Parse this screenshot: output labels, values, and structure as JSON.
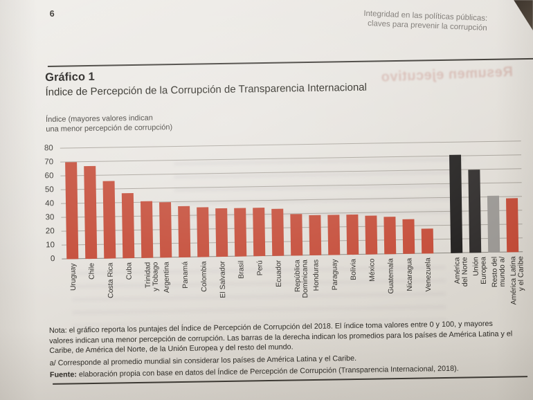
{
  "page": {
    "number": "6",
    "header_line1": "Integridad en las políticas públicas:",
    "header_line2": "claves para prevenir la corrupción"
  },
  "figure": {
    "label": "Gráfico 1",
    "title": "Índice de Percepción de la Corrupción de Transparencia Internacional",
    "axis_note_line1": "Índice (mayores valores indican",
    "axis_note_line2": "una menor percepción de corrupción)"
  },
  "chart_data": {
    "type": "bar",
    "title": "Índice de Percepción de la Corrupción de Transparencia Internacional",
    "ylabel": "Índice (mayores valores indican una menor percepción de corrupción)",
    "xlabel": "",
    "ylim": [
      0,
      80
    ],
    "yticks": [
      0,
      10,
      20,
      30,
      40,
      50,
      60,
      70,
      80
    ],
    "grid": true,
    "legend": "none",
    "bar_color": "#c44a36",
    "categories": [
      "Uruguay",
      "Chile",
      "Costa Rica",
      "Cuba",
      "Trinidad\ny Tobago",
      "Argentina",
      "Panamá",
      "Colombia",
      "El Salvador",
      "Brasil",
      "Perú",
      "Ecuador",
      "República\nDominicana",
      "Honduras",
      "Paraguay",
      "Bolivia",
      "México",
      "Guatemala",
      "Nicaragua",
      "Venezuela"
    ],
    "values": [
      70,
      67,
      56,
      47,
      41,
      40,
      37,
      36,
      35,
      35,
      35,
      34,
      30,
      29,
      29,
      29,
      28,
      27,
      25,
      18
    ],
    "aggregates": [
      {
        "label": "América\ndel Norte",
        "value": 71,
        "color": "#201e1d"
      },
      {
        "label": "Unión\nEuropea",
        "value": 60,
        "color": "#2e2b2a"
      },
      {
        "label": "Resto del\nmundo a/",
        "value": 41,
        "color": "#9a9793"
      },
      {
        "label": "América Latina\ny el Caribe",
        "value": 39,
        "color": "#c44a36"
      }
    ]
  },
  "notes": {
    "nota": "Nota: el gráfico reporta los puntajes del Índice de Percepción de Corrupción del 2018. El índice toma valores entre 0 y 100, y mayores valores indican una menor percepción de corrupción. Las barras de la derecha indican los promedios para los países de América Latina y el Caribe, de América del Norte, de la Unión Europea y del resto del mundo.",
    "footnote_a": "a/ Corresponde al promedio mundial sin considerar los países de América Latina y el Caribe.",
    "fuente_label": "Fuente:",
    "fuente_text": " elaboración propia con base en datos del Índice de Percepción de Corrupción (Transparencia Internacional, 2018)."
  },
  "photo_artifacts": {
    "bleed_text": "Resumen ejecutivo"
  }
}
